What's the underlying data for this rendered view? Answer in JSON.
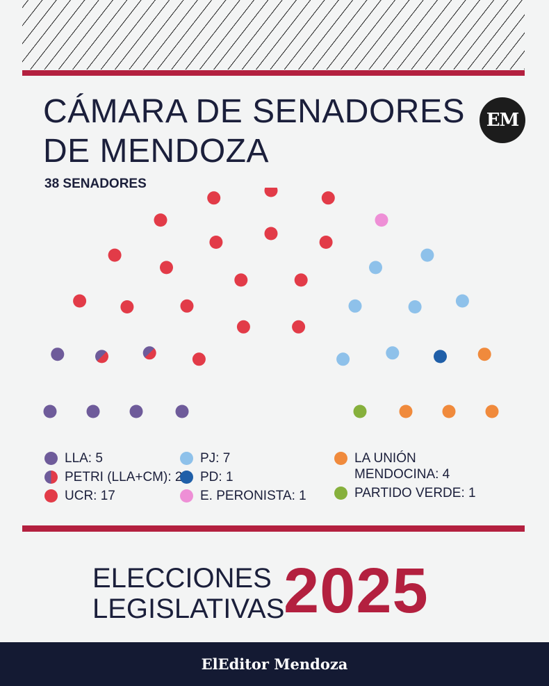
{
  "header": {
    "title_line1": "CÁMARA DE SENADORES",
    "title_line2": "DE MENDOZA",
    "subtitle": "38 SENADORES",
    "logo_text": "EM"
  },
  "chart_data": {
    "type": "parliament",
    "total_seats": 38,
    "parties": [
      {
        "name": "LLA",
        "label": "LLA: 5",
        "seats": 5,
        "color": "#6e5b9a"
      },
      {
        "name": "PETRI (LLA+CM)",
        "label": "PETRI (LLA+CM): 2",
        "seats": 2,
        "color": "split:#6e5b9a/#e23b48"
      },
      {
        "name": "UCR",
        "label": "UCR: 17",
        "seats": 17,
        "color": "#e23b48"
      },
      {
        "name": "E. PERONISTA",
        "label": "E. PERONISTA: 1",
        "seats": 1,
        "color": "#ee8fd6"
      },
      {
        "name": "PJ",
        "label": "PJ: 7",
        "seats": 7,
        "color": "#8ec1ea"
      },
      {
        "name": "PD",
        "label": "PD: 1",
        "seats": 1,
        "color": "#1f5fa8"
      },
      {
        "name": "LA UNIÓN MENDOCINA",
        "label": "LA UNIÓN\nMENDOCINA: 4",
        "seats": 4,
        "color": "#f08a3c"
      },
      {
        "name": "PARTIDO VERDE",
        "label": "PARTIDO VERDE: 1",
        "seats": 1,
        "color": "#86b03c"
      }
    ]
  },
  "legend": {
    "columns": [
      [
        "LLA",
        "PETRI (LLA+CM)",
        "UCR"
      ],
      [
        "PJ",
        "PD",
        "E. PERONISTA"
      ],
      [
        "LA UNIÓN MENDOCINA",
        "PARTIDO VERDE"
      ]
    ]
  },
  "footer": {
    "line1": "ELECCIONES",
    "line2": "LEGISLATIVAS",
    "year": "2025",
    "brand": "ElEditor Mendoza"
  }
}
